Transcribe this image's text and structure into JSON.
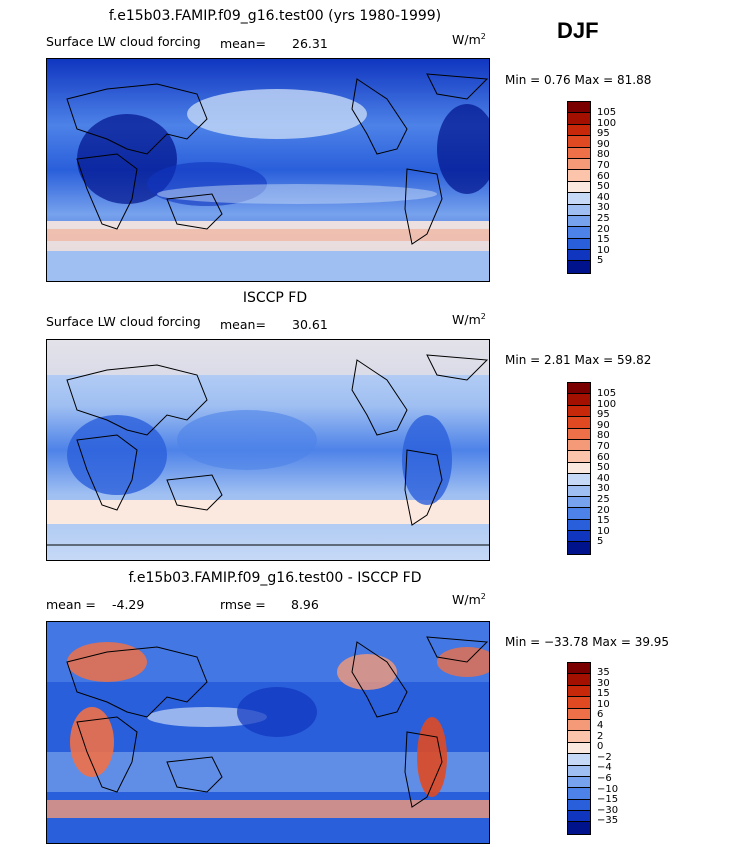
{
  "season": "DJF",
  "units_base": "W/m",
  "units_exp": "2",
  "panels": [
    {
      "title": "f.e15b03.FAMIP.f09_g16.test00 (yrs 1980-1999)",
      "subtitle": "Surface LW cloud forcing",
      "mean_label": "mean=",
      "mean_value": "26.31",
      "min_max": "Min =    0.76  Max =  81.88",
      "colorbar_labels": [
        "105",
        "100",
        "95",
        "90",
        "80",
        "70",
        "60",
        "50",
        "40",
        "30",
        "25",
        "20",
        "15",
        "10",
        "5"
      ]
    },
    {
      "title": "ISCCP FD",
      "subtitle": "Surface LW cloud forcing",
      "mean_label": "mean=",
      "mean_value": "30.61",
      "min_max": "Min =    2.81  Max =  59.82",
      "colorbar_labels": [
        "105",
        "100",
        "95",
        "90",
        "80",
        "70",
        "60",
        "50",
        "40",
        "30",
        "25",
        "20",
        "15",
        "10",
        "5"
      ]
    },
    {
      "title": "f.e15b03.FAMIP.f09_g16.test00 - ISCCP FD",
      "mean_label": "mean =",
      "mean_value": "-4.29",
      "rmse_label": "rmse =",
      "rmse_value": "8.96",
      "min_max": "Min = −33.78  Max =  39.95",
      "colorbar_labels": [
        "35",
        "30",
        "15",
        "10",
        "6",
        "4",
        "2",
        "0",
        "−2",
        "−4",
        "−6",
        "−10",
        "−15",
        "−30",
        "−35"
      ]
    }
  ],
  "colors": {
    "scale": [
      "#7a0000",
      "#a31000",
      "#c8280a",
      "#df4a22",
      "#ee7048",
      "#f59a78",
      "#fbc4ab",
      "#fbe9df",
      "#c6d9f6",
      "#9fbff2",
      "#77a2ed",
      "#4d82e8",
      "#2a5fdb",
      "#1036c0",
      "#00138c"
    ],
    "land_line": "#000000"
  }
}
